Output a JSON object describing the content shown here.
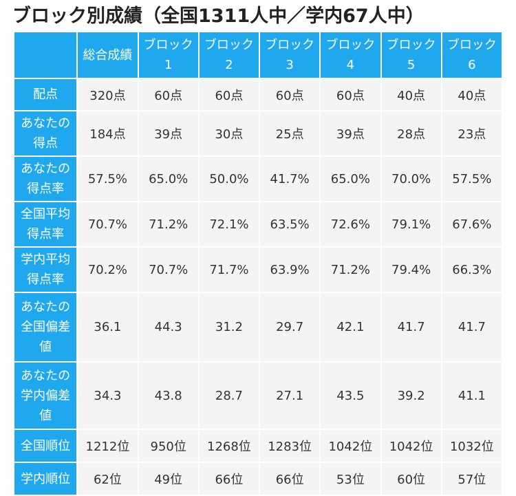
{
  "title": "ブロック別成績（全国1311人中／学内67人中）",
  "columns": [
    [
      "総合成績"
    ],
    [
      "ブロック",
      "1"
    ],
    [
      "ブロック",
      "2"
    ],
    [
      "ブロック",
      "3"
    ],
    [
      "ブロック",
      "4"
    ],
    [
      "ブロック",
      "5"
    ],
    [
      "ブロック",
      "6"
    ]
  ],
  "rows": [
    {
      "label": [
        "配点"
      ],
      "values": [
        "320点",
        "60点",
        "60点",
        "60点",
        "60点",
        "40点",
        "40点"
      ]
    },
    {
      "label": [
        "あなたの",
        "得点"
      ],
      "values": [
        "184点",
        "39点",
        "30点",
        "25点",
        "39点",
        "28点",
        "23点"
      ]
    },
    {
      "label": [
        "あなたの",
        "得点率"
      ],
      "values": [
        "57.5%",
        "65.0%",
        "50.0%",
        "41.7%",
        "65.0%",
        "70.0%",
        "57.5%"
      ]
    },
    {
      "label": [
        "全国平均",
        "得点率"
      ],
      "values": [
        "70.7%",
        "71.2%",
        "72.1%",
        "63.5%",
        "72.6%",
        "79.1%",
        "67.6%"
      ]
    },
    {
      "label": [
        "学内平均",
        "得点率"
      ],
      "values": [
        "70.2%",
        "70.7%",
        "71.7%",
        "63.9%",
        "71.2%",
        "79.4%",
        "66.3%"
      ]
    },
    {
      "label": [
        "あなたの",
        "全国偏差",
        "値"
      ],
      "values": [
        "36.1",
        "44.3",
        "31.2",
        "29.7",
        "42.1",
        "41.7",
        "41.7"
      ]
    },
    {
      "label": [
        "あなたの",
        "学内偏差",
        "値"
      ],
      "values": [
        "34.3",
        "43.8",
        "28.7",
        "27.1",
        "43.5",
        "39.2",
        "41.1"
      ]
    },
    {
      "label": [
        "全国順位"
      ],
      "values": [
        "1212位",
        "950位",
        "1268位",
        "1283位",
        "1042位",
        "1042位",
        "1032位"
      ]
    },
    {
      "label": [
        "学内順位"
      ],
      "values": [
        "62位",
        "49位",
        "66位",
        "66位",
        "53位",
        "60位",
        "57位"
      ]
    }
  ]
}
